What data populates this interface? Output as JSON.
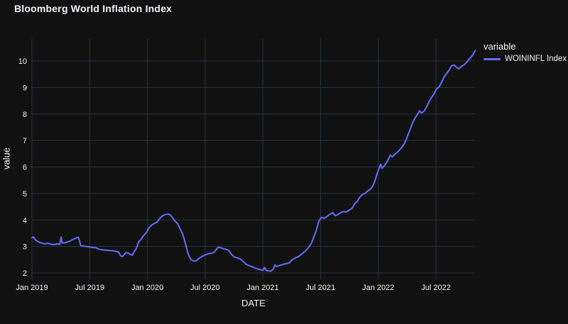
{
  "title": "Bloomberg World Inflation Index",
  "legend": {
    "title": "variable",
    "series_label": "WOININFL Index"
  },
  "chart_data": {
    "type": "line",
    "title": "Bloomberg World Inflation Index",
    "xlabel": "DATE",
    "ylabel": "value",
    "grid": true,
    "legend_position": "top-right",
    "ylim": [
      1.76,
      10.83
    ],
    "y_ticks": [
      2,
      3,
      4,
      5,
      6,
      7,
      8,
      9,
      10
    ],
    "x_ticks": [
      {
        "label": "Jan 2019",
        "date": "2019-01-01"
      },
      {
        "label": "Jul 2019",
        "date": "2019-07-01"
      },
      {
        "label": "Jan 2020",
        "date": "2020-01-01"
      },
      {
        "label": "Jul 2020",
        "date": "2020-07-01"
      },
      {
        "label": "Jan 2021",
        "date": "2021-01-01"
      },
      {
        "label": "Jul 2021",
        "date": "2021-07-01"
      },
      {
        "label": "Jan 2022",
        "date": "2022-01-01"
      },
      {
        "label": "Jul 2022",
        "date": "2022-07-01"
      }
    ],
    "colors": {
      "background": "#111111",
      "grid": "#283442",
      "text": "#f2f5fa",
      "line": "#636efa"
    },
    "series": [
      {
        "name": "WOININFL Index",
        "color": "#636efa",
        "points": [
          [
            "2019-01-01",
            3.33
          ],
          [
            "2019-01-06",
            3.36
          ],
          [
            "2019-01-10",
            3.28
          ],
          [
            "2019-01-15",
            3.22
          ],
          [
            "2019-01-22",
            3.17
          ],
          [
            "2019-02-01",
            3.13
          ],
          [
            "2019-02-10",
            3.1
          ],
          [
            "2019-02-20",
            3.12
          ],
          [
            "2019-03-01",
            3.08
          ],
          [
            "2019-03-10",
            3.07
          ],
          [
            "2019-03-20",
            3.1
          ],
          [
            "2019-03-28",
            3.08
          ],
          [
            "2019-04-02",
            3.36
          ],
          [
            "2019-04-05",
            3.13
          ],
          [
            "2019-04-12",
            3.14
          ],
          [
            "2019-04-20",
            3.16
          ],
          [
            "2019-05-01",
            3.21
          ],
          [
            "2019-05-10",
            3.27
          ],
          [
            "2019-05-18",
            3.32
          ],
          [
            "2019-05-26",
            3.35
          ],
          [
            "2019-05-30",
            3.2
          ],
          [
            "2019-06-03",
            3.03
          ],
          [
            "2019-06-12",
            3.01
          ],
          [
            "2019-06-22",
            3.0
          ],
          [
            "2019-07-01",
            2.98
          ],
          [
            "2019-07-12",
            2.96
          ],
          [
            "2019-07-22",
            2.95
          ],
          [
            "2019-08-01",
            2.89
          ],
          [
            "2019-08-12",
            2.87
          ],
          [
            "2019-08-22",
            2.86
          ],
          [
            "2019-09-01",
            2.85
          ],
          [
            "2019-09-12",
            2.84
          ],
          [
            "2019-09-22",
            2.82
          ],
          [
            "2019-10-01",
            2.79
          ],
          [
            "2019-10-08",
            2.64
          ],
          [
            "2019-10-14",
            2.62
          ],
          [
            "2019-10-18",
            2.68
          ],
          [
            "2019-10-24",
            2.77
          ],
          [
            "2019-11-01",
            2.75
          ],
          [
            "2019-11-08",
            2.7
          ],
          [
            "2019-11-14",
            2.67
          ],
          [
            "2019-11-20",
            2.8
          ],
          [
            "2019-11-26",
            2.9
          ],
          [
            "2019-12-04",
            3.18
          ],
          [
            "2019-12-12",
            3.28
          ],
          [
            "2019-12-20",
            3.42
          ],
          [
            "2019-12-28",
            3.52
          ],
          [
            "2020-01-06",
            3.7
          ],
          [
            "2020-01-14",
            3.8
          ],
          [
            "2020-01-22",
            3.86
          ],
          [
            "2020-02-01",
            3.92
          ],
          [
            "2020-02-10",
            4.06
          ],
          [
            "2020-02-18",
            4.15
          ],
          [
            "2020-02-26",
            4.2
          ],
          [
            "2020-03-05",
            4.22
          ],
          [
            "2020-03-12",
            4.2
          ],
          [
            "2020-03-20",
            4.08
          ],
          [
            "2020-03-28",
            3.95
          ],
          [
            "2020-04-06",
            3.85
          ],
          [
            "2020-04-14",
            3.65
          ],
          [
            "2020-04-22",
            3.45
          ],
          [
            "2020-05-01",
            3.05
          ],
          [
            "2020-05-08",
            2.72
          ],
          [
            "2020-05-16",
            2.52
          ],
          [
            "2020-05-24",
            2.46
          ],
          [
            "2020-06-02",
            2.45
          ],
          [
            "2020-06-12",
            2.55
          ],
          [
            "2020-06-22",
            2.62
          ],
          [
            "2020-07-01",
            2.68
          ],
          [
            "2020-07-12",
            2.73
          ],
          [
            "2020-07-22",
            2.74
          ],
          [
            "2020-08-01",
            2.8
          ],
          [
            "2020-08-10",
            2.95
          ],
          [
            "2020-08-18",
            2.97
          ],
          [
            "2020-08-26",
            2.92
          ],
          [
            "2020-09-04",
            2.9
          ],
          [
            "2020-09-14",
            2.86
          ],
          [
            "2020-09-24",
            2.7
          ],
          [
            "2020-10-02",
            2.6
          ],
          [
            "2020-10-12",
            2.57
          ],
          [
            "2020-10-22",
            2.52
          ],
          [
            "2020-11-01",
            2.42
          ],
          [
            "2020-11-10",
            2.32
          ],
          [
            "2020-11-20",
            2.27
          ],
          [
            "2020-12-01",
            2.22
          ],
          [
            "2020-12-10",
            2.17
          ],
          [
            "2020-12-20",
            2.13
          ],
          [
            "2021-01-01",
            2.1
          ],
          [
            "2021-01-07",
            2.21
          ],
          [
            "2021-01-11",
            2.1
          ],
          [
            "2021-01-18",
            2.08
          ],
          [
            "2021-01-26",
            2.07
          ],
          [
            "2021-02-03",
            2.13
          ],
          [
            "2021-02-09",
            2.3
          ],
          [
            "2021-02-14",
            2.24
          ],
          [
            "2021-02-22",
            2.28
          ],
          [
            "2021-03-04",
            2.32
          ],
          [
            "2021-03-14",
            2.35
          ],
          [
            "2021-03-24",
            2.38
          ],
          [
            "2021-04-03",
            2.5
          ],
          [
            "2021-04-13",
            2.57
          ],
          [
            "2021-04-23",
            2.62
          ],
          [
            "2021-05-03",
            2.72
          ],
          [
            "2021-05-13",
            2.82
          ],
          [
            "2021-05-23",
            2.95
          ],
          [
            "2021-06-02",
            3.1
          ],
          [
            "2021-06-10",
            3.35
          ],
          [
            "2021-06-18",
            3.6
          ],
          [
            "2021-06-26",
            3.95
          ],
          [
            "2021-07-04",
            4.1
          ],
          [
            "2021-07-12",
            4.06
          ],
          [
            "2021-07-20",
            4.12
          ],
          [
            "2021-08-01",
            4.22
          ],
          [
            "2021-08-09",
            4.28
          ],
          [
            "2021-08-17",
            4.16
          ],
          [
            "2021-08-25",
            4.2
          ],
          [
            "2021-09-02",
            4.26
          ],
          [
            "2021-09-12",
            4.32
          ],
          [
            "2021-09-22",
            4.3
          ],
          [
            "2021-10-02",
            4.38
          ],
          [
            "2021-10-10",
            4.45
          ],
          [
            "2021-10-18",
            4.62
          ],
          [
            "2021-10-26",
            4.7
          ],
          [
            "2021-11-03",
            4.85
          ],
          [
            "2021-11-11",
            4.95
          ],
          [
            "2021-11-19",
            5.0
          ],
          [
            "2021-11-27",
            5.08
          ],
          [
            "2021-12-05",
            5.15
          ],
          [
            "2021-12-13",
            5.25
          ],
          [
            "2021-12-21",
            5.48
          ],
          [
            "2021-12-28",
            5.75
          ],
          [
            "2022-01-04",
            5.97
          ],
          [
            "2022-01-09",
            6.1
          ],
          [
            "2022-01-13",
            5.95
          ],
          [
            "2022-01-21",
            6.05
          ],
          [
            "2022-02-01",
            6.25
          ],
          [
            "2022-02-09",
            6.45
          ],
          [
            "2022-02-15",
            6.38
          ],
          [
            "2022-02-23",
            6.48
          ],
          [
            "2022-03-03",
            6.58
          ],
          [
            "2022-03-13",
            6.72
          ],
          [
            "2022-03-23",
            6.88
          ],
          [
            "2022-04-02",
            7.15
          ],
          [
            "2022-04-10",
            7.4
          ],
          [
            "2022-04-18",
            7.65
          ],
          [
            "2022-04-26",
            7.85
          ],
          [
            "2022-05-04",
            8.0
          ],
          [
            "2022-05-10",
            8.12
          ],
          [
            "2022-05-16",
            8.04
          ],
          [
            "2022-05-24",
            8.1
          ],
          [
            "2022-06-01",
            8.25
          ],
          [
            "2022-06-09",
            8.45
          ],
          [
            "2022-06-17",
            8.62
          ],
          [
            "2022-06-25",
            8.75
          ],
          [
            "2022-07-03",
            8.95
          ],
          [
            "2022-07-11",
            9.02
          ],
          [
            "2022-07-19",
            9.2
          ],
          [
            "2022-07-27",
            9.4
          ],
          [
            "2022-08-04",
            9.52
          ],
          [
            "2022-08-12",
            9.65
          ],
          [
            "2022-08-20",
            9.82
          ],
          [
            "2022-08-28",
            9.85
          ],
          [
            "2022-09-05",
            9.76
          ],
          [
            "2022-09-13",
            9.7
          ],
          [
            "2022-09-21",
            9.8
          ],
          [
            "2022-09-29",
            9.85
          ],
          [
            "2022-10-07",
            9.95
          ],
          [
            "2022-10-15",
            10.08
          ],
          [
            "2022-10-23",
            10.18
          ],
          [
            "2022-10-29",
            10.28
          ],
          [
            "2022-11-04",
            10.4
          ]
        ]
      }
    ]
  }
}
